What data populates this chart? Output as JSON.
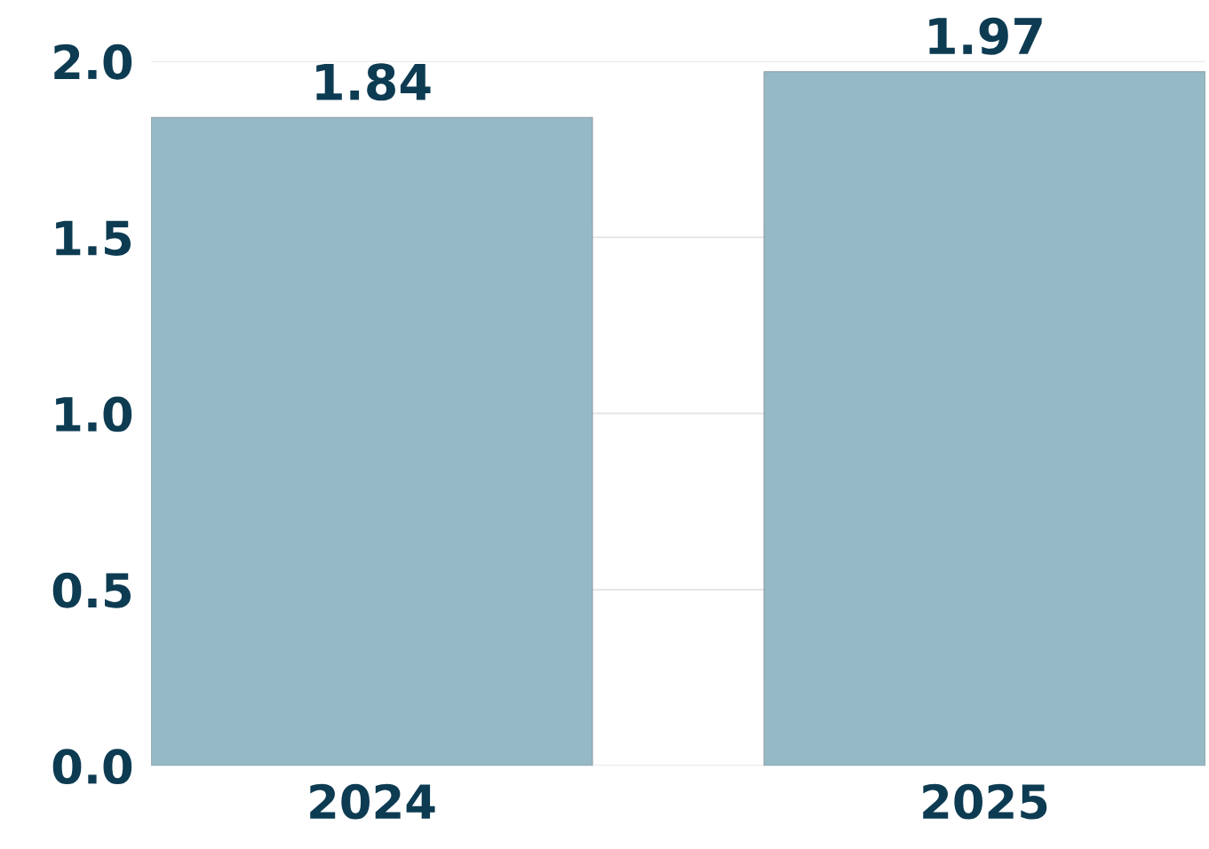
{
  "chart_data": {
    "type": "bar",
    "categories": [
      "2024",
      "2025"
    ],
    "values": [
      1.84,
      1.97
    ],
    "color": "#96b9c6",
    "ylim": [
      0,
      2.0
    ],
    "yticks": [
      {
        "value": 0,
        "label": "0.0"
      },
      {
        "value": 0.5,
        "label": "0.5"
      },
      {
        "value": 1.0,
        "label": "1.0"
      },
      {
        "value": 1.5,
        "label": "1.5"
      },
      {
        "value": 2.0,
        "label": "2.0"
      }
    ],
    "grid": "y",
    "data_labels": true,
    "legend": false
  }
}
